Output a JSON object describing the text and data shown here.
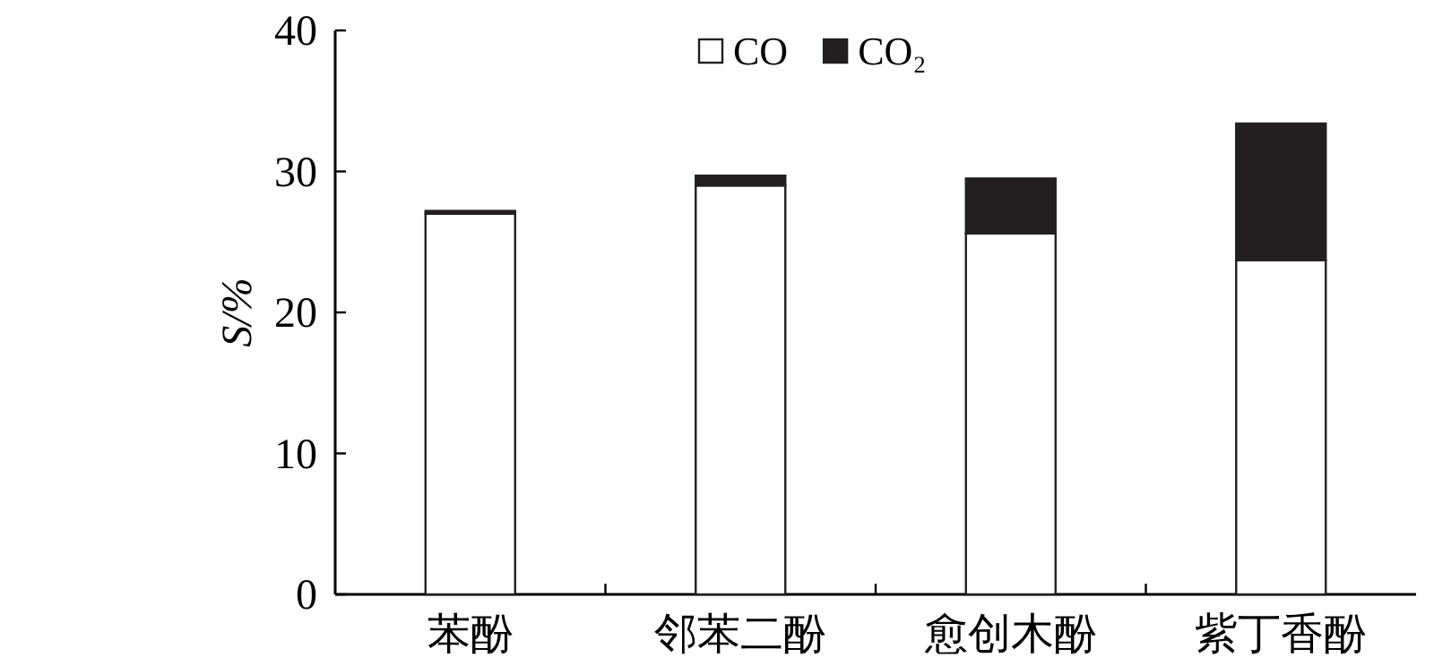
{
  "chart_data": {
    "type": "bar",
    "stacked": true,
    "ylabel": "S/%",
    "categories": [
      "苯酚",
      "邻苯二酚",
      "愈创木酚",
      "紫丁香酚"
    ],
    "series": [
      {
        "name": "CO",
        "color": "#ffffff",
        "values": [
          27.0,
          29.0,
          25.6,
          23.7
        ]
      },
      {
        "name": "CO₂",
        "color": "#231f20",
        "values": [
          0.2,
          0.7,
          3.9,
          9.7
        ]
      }
    ],
    "ylim": [
      0,
      40
    ],
    "yticks": [
      0,
      10,
      20,
      30,
      40
    ],
    "legend": "top"
  }
}
